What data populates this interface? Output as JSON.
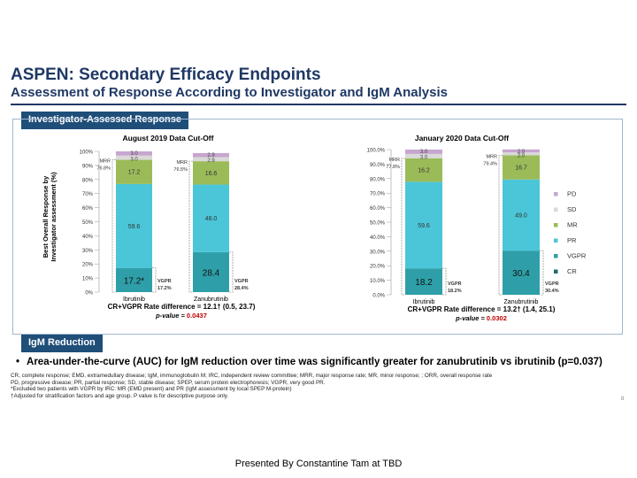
{
  "slide": {
    "title": "ASPEN: Secondary Efficacy Endpoints",
    "subtitle": "Assessment of Response According to Investigator and IgM Analysis",
    "section1": "Investigator-Assessed Response",
    "section2": "IgM Reduction",
    "bullet": "Area-under-the-curve (AUC) for IgM reduction over time was significantly greater for zanubrutinib vs ibrutinib (p=0.037)",
    "footnotes": [
      "CR, complete response; EMD, extramedullary disease; IgM, immunoglobulin M; IRC, independent review committee; MRR, major response rate; MR, minor response; ; ORR, overall response rate",
      "PD, progressive disease; PR, partial response; SD, stable disease; SPEP, serum protein electrophoresis; VGPR, very good PR.",
      "*Excluded two patients with VGPR by IRC: MR (EMD present) and PR (IgM assessment by local SPEP M-protein)",
      "†Adjusted for stratification factors and age group. P value is for descriptive purpose only."
    ],
    "page_number": "8",
    "presented_by": "Presented By Constantine Tam at TBD",
    "bullet_char": "•"
  },
  "chart_data": [
    {
      "type": "bar",
      "stacked": true,
      "title": "August 2019 Data Cut-Off",
      "ylabel": "Best Overall Response by Investigator assessment (%)",
      "ylim": [
        0,
        100
      ],
      "yticks": [
        "0%",
        "10%",
        "20%",
        "30%",
        "40%",
        "50%",
        "60%",
        "70%",
        "80%",
        "90%",
        "100%"
      ],
      "categories": [
        "Ibrutinib",
        "Zanubrutinib"
      ],
      "series": [
        {
          "name": "CR",
          "values": [
            0,
            0
          ]
        },
        {
          "name": "VGPR",
          "values": [
            17.2,
            28.4
          ],
          "labels": [
            "17.2*",
            "28.4"
          ]
        },
        {
          "name": "PR",
          "values": [
            59.6,
            48.0
          ],
          "labels": [
            "59.6",
            "48.0"
          ]
        },
        {
          "name": "MR",
          "values": [
            17.2,
            16.6
          ],
          "labels": [
            "17.2",
            "16.6"
          ]
        },
        {
          "name": "SD",
          "values": [
            3.0,
            2.9
          ],
          "labels": [
            "3.0",
            "2.9"
          ]
        },
        {
          "name": "PD",
          "values": [
            3.0,
            2.9
          ],
          "labels": [
            "3.0",
            "2.9"
          ]
        }
      ],
      "annotations": {
        "mrr": [
          "MRR\n76.8%",
          "MRR\n76.5%"
        ],
        "vgpr": [
          "VGPR\n17.2%",
          "VGPR\n28.4%"
        ]
      },
      "difference": "CR+VGPR Rate difference = 12.1† (0.5, 23.7)",
      "pvalue_label": "p-value = ",
      "pvalue": "0.0437"
    },
    {
      "type": "bar",
      "stacked": true,
      "title": "January 2020 Data Cut-Off",
      "ylim": [
        0,
        100
      ],
      "yticks": [
        "0.0%",
        "10.0%",
        "20.0%",
        "30.0%",
        "40.0%",
        "50.0%",
        "60.0%",
        "70.0%",
        "80.0%",
        "90.0%",
        "100.0%"
      ],
      "categories": [
        "Ibrutinib",
        "Zanubrutinib"
      ],
      "series": [
        {
          "name": "CR",
          "values": [
            0,
            0
          ]
        },
        {
          "name": "VGPR",
          "values": [
            18.2,
            30.4
          ],
          "labels": [
            "18.2",
            "30.4"
          ]
        },
        {
          "name": "PR",
          "values": [
            59.6,
            49.0
          ],
          "labels": [
            "59.6",
            "49.0"
          ]
        },
        {
          "name": "MR",
          "values": [
            16.2,
            16.7
          ],
          "labels": [
            "16.2",
            "16.7"
          ]
        },
        {
          "name": "SD",
          "values": [
            3.0,
            2.0
          ],
          "labels": [
            "3.0",
            "2.0"
          ]
        },
        {
          "name": "PD",
          "values": [
            3.0,
            2.0
          ],
          "labels": [
            "3.0",
            "2.0"
          ]
        }
      ],
      "annotations": {
        "mrr": [
          "MRR\n77.8%",
          "MRR\n79.4%"
        ],
        "vgpr": [
          "VGPR\n18.2%",
          "VGPR\n30.4%"
        ]
      },
      "difference": "CR+VGPR Rate difference = 13.2† (1.4, 25.1)",
      "pvalue_label": "p-value = ",
      "pvalue": "0.0302"
    }
  ],
  "legend": [
    {
      "name": "PD",
      "color": "#c7a6cf"
    },
    {
      "name": "SD",
      "color": "#d9d9d9"
    },
    {
      "name": "MR",
      "color": "#9bbb59"
    },
    {
      "name": "PR",
      "color": "#4bc6d8"
    },
    {
      "name": "VGPR",
      "color": "#2e9fa8"
    },
    {
      "name": "CR",
      "color": "#1f6b6b"
    }
  ],
  "colors": {
    "VGPR": "#2e9fa8",
    "PR": "#4bc6d8",
    "MR": "#9bbb59",
    "SD": "#d9d9d9",
    "PD": "#c7a6cf",
    "CR": "#1f6b6b",
    "title": "#1f3864",
    "section": "#1f4e79",
    "pvalue": "#c00000",
    "bracket": "#999999"
  }
}
